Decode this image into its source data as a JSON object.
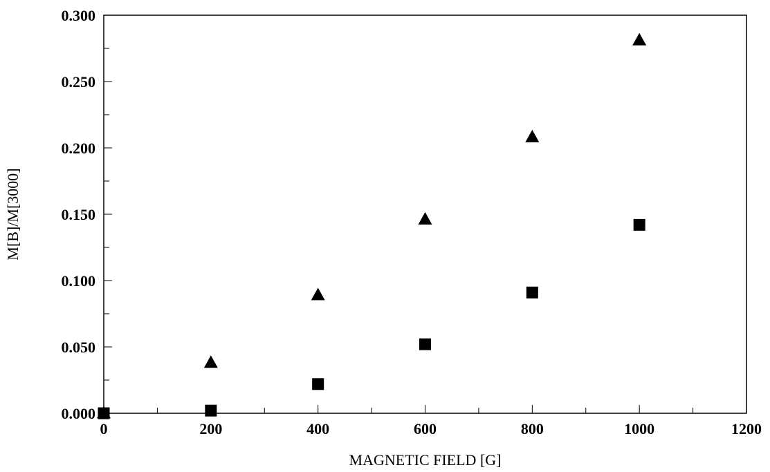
{
  "chart_data": {
    "type": "scatter",
    "title": "",
    "xlabel": "MAGNETIC FIELD [G]",
    "ylabel": "M[B]/M[3000]",
    "xlim": [
      0,
      1200
    ],
    "ylim": [
      0,
      0.3
    ],
    "x_ticks": [
      0,
      200,
      400,
      600,
      800,
      1000,
      1200
    ],
    "x_tick_labels": [
      "0",
      "200",
      "400",
      "600",
      "800",
      "1000",
      "1200"
    ],
    "y_ticks": [
      0,
      0.05,
      0.1,
      0.15,
      0.2,
      0.25,
      0.3
    ],
    "y_tick_labels": [
      "0.000",
      "0.050",
      "0.100",
      "0.150",
      "0.200",
      "0.250",
      "0.300"
    ],
    "grid": false,
    "legend": "none",
    "series": [
      {
        "marker": "triangle",
        "color": "#000000",
        "points": [
          [
            0,
            0.0
          ],
          [
            200,
            0.038
          ],
          [
            400,
            0.089
          ],
          [
            600,
            0.146
          ],
          [
            800,
            0.208
          ],
          [
            1000,
            0.281
          ]
        ]
      },
      {
        "marker": "square",
        "color": "#000000",
        "points": [
          [
            0,
            0.0
          ],
          [
            200,
            0.002
          ],
          [
            400,
            0.022
          ],
          [
            600,
            0.052
          ],
          [
            800,
            0.091
          ],
          [
            1000,
            0.142
          ]
        ]
      }
    ]
  }
}
